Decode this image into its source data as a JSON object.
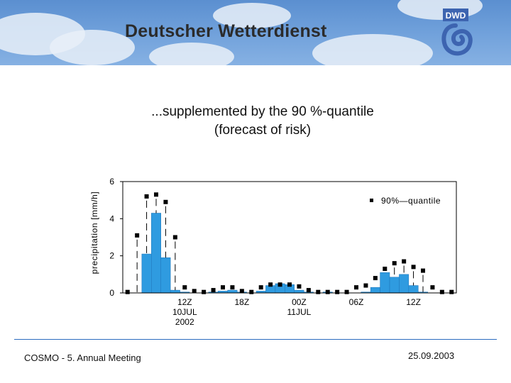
{
  "header": {
    "brand": "Deutscher Wetterdienst",
    "logo_text": "DWD"
  },
  "slide": {
    "heading_line1": "...supplemented by the 90 %-quantile",
    "heading_line2": "(forecast of risk)"
  },
  "footer": {
    "meeting": "COSMO - 5. Annual Meeting",
    "date": "25.09.2003"
  },
  "colors": {
    "bar": "#2f9be0",
    "bar_edge": "#1f74b8",
    "marker": "#000000",
    "frame": "#000000"
  },
  "chart_data": {
    "type": "bar",
    "ylabel": "precipitation [mm/h]",
    "ylim": [
      0,
      6
    ],
    "yticks": [
      0,
      2,
      4,
      6
    ],
    "legend": {
      "label": "90%—quantile",
      "position": "top-right"
    },
    "x_labels": [
      {
        "index": 6,
        "lines": [
          "12Z",
          "10JUL",
          "2002"
        ]
      },
      {
        "index": 12,
        "lines": [
          "18Z"
        ]
      },
      {
        "index": 18,
        "lines": [
          "00Z",
          "11JUL"
        ]
      },
      {
        "index": 24,
        "lines": [
          "06Z"
        ]
      },
      {
        "index": 30,
        "lines": [
          "12Z"
        ]
      }
    ],
    "series": [
      {
        "name": "precipitation",
        "values": [
          0,
          0,
          2.1,
          4.3,
          1.9,
          0.15,
          0.05,
          0,
          0,
          0.05,
          0.1,
          0.15,
          0.05,
          0,
          0.1,
          0.4,
          0.5,
          0.45,
          0.15,
          0.05,
          0,
          0.05,
          0,
          0,
          0,
          0.05,
          0.3,
          1.1,
          0.85,
          1.0,
          0.4,
          0.05,
          0,
          0,
          0
        ]
      },
      {
        "name": "90%-quantile",
        "values": [
          0.05,
          3.1,
          5.2,
          5.3,
          4.9,
          3.0,
          0.3,
          0.1,
          0.05,
          0.15,
          0.3,
          0.3,
          0.1,
          0.05,
          0.3,
          0.45,
          0.45,
          0.45,
          0.35,
          0.15,
          0.05,
          0.05,
          0.05,
          0.05,
          0.3,
          0.4,
          0.8,
          1.3,
          1.6,
          1.7,
          1.4,
          1.2,
          0.3,
          0.05,
          0.05
        ]
      }
    ]
  }
}
